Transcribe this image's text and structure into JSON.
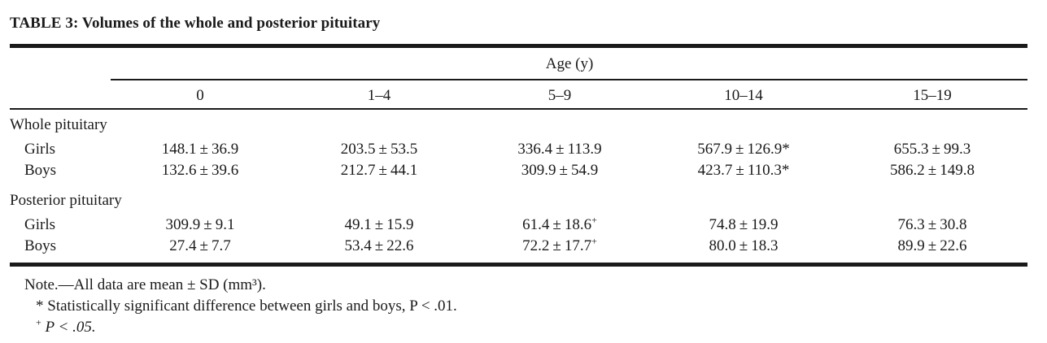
{
  "table": {
    "title": "TABLE 3: Volumes of the whole and posterior pituitary",
    "spanner": "Age (y)",
    "columns": [
      "0",
      "1–4",
      "5–9",
      "10–14",
      "15–19"
    ],
    "sections": [
      {
        "label": "Whole pituitary",
        "rows": [
          {
            "label": "Girls",
            "cells": [
              {
                "mean": "148.1",
                "sd": "36.9",
                "mark": ""
              },
              {
                "mean": "203.5",
                "sd": "53.5",
                "mark": ""
              },
              {
                "mean": "336.4",
                "sd": "113.9",
                "mark": ""
              },
              {
                "mean": "567.9",
                "sd": "126.9",
                "mark": "*"
              },
              {
                "mean": "655.3",
                "sd": "99.3",
                "mark": ""
              }
            ]
          },
          {
            "label": "Boys",
            "cells": [
              {
                "mean": "132.6",
                "sd": "39.6",
                "mark": ""
              },
              {
                "mean": "212.7",
                "sd": "44.1",
                "mark": ""
              },
              {
                "mean": "309.9",
                "sd": "54.9",
                "mark": ""
              },
              {
                "mean": "423.7",
                "sd": "110.3",
                "mark": "*"
              },
              {
                "mean": "586.2",
                "sd": "149.8",
                "mark": ""
              }
            ]
          }
        ]
      },
      {
        "label": "Posterior pituitary",
        "rows": [
          {
            "label": "Girls",
            "cells": [
              {
                "mean": "309.9",
                "sd": "9.1",
                "mark": ""
              },
              {
                "mean": "49.1",
                "sd": "15.9",
                "mark": ""
              },
              {
                "mean": "61.4",
                "sd": "18.6",
                "mark": "+"
              },
              {
                "mean": "74.8",
                "sd": "19.9",
                "mark": ""
              },
              {
                "mean": "76.3",
                "sd": "30.8",
                "mark": ""
              }
            ]
          },
          {
            "label": "Boys",
            "cells": [
              {
                "mean": "27.4",
                "sd": "7.7",
                "mark": ""
              },
              {
                "mean": "53.4",
                "sd": "22.6",
                "mark": ""
              },
              {
                "mean": "72.2",
                "sd": "17.7",
                "mark": "+"
              },
              {
                "mean": "80.0",
                "sd": "18.3",
                "mark": ""
              },
              {
                "mean": "89.9",
                "sd": "22.6",
                "mark": ""
              }
            ]
          }
        ]
      }
    ],
    "plus_minus": "±",
    "notes": {
      "note1": "Note.—All data are mean ± SD (mm³).",
      "note2": "* Statistically significant difference between girls and boys, P < .01.",
      "note3_mark": "+",
      "note3": "P < .05."
    }
  }
}
